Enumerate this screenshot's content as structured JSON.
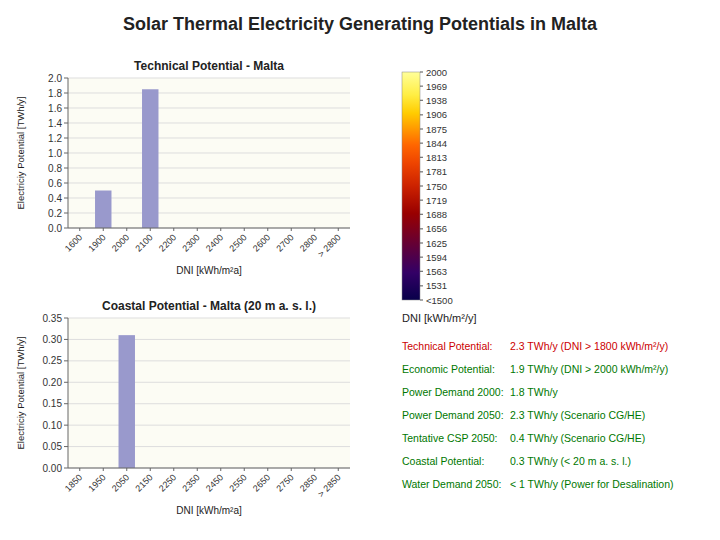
{
  "title": "Solar Thermal Electricity Generating Potentials in Malta",
  "chart_data": [
    {
      "type": "bar",
      "title": "Technical Potential - Malta",
      "categories": [
        "1600",
        "1900",
        "2000",
        "2100",
        "2200",
        "2300",
        "2400",
        "2500",
        "2600",
        "2700",
        "2800",
        "> 2800"
      ],
      "values": [
        0,
        0.5,
        0,
        1.85,
        0,
        0,
        0,
        0,
        0,
        0,
        0,
        0
      ],
      "color": "#9999cc",
      "xlabel": "DNI [kWh/m²a]",
      "ylabel": "Electriciy Potential [TWh/y]",
      "ylim": [
        0,
        2.0
      ],
      "yticks": [
        {
          "value": 0.0,
          "label": "0.0"
        },
        0.2,
        0.4,
        0.6,
        0.8,
        {
          "value": 1.0,
          "label": "1.0"
        },
        1.2,
        1.4,
        1.6,
        1.8,
        {
          "value": 2.0,
          "label": "2.0"
        }
      ],
      "grid": true
    },
    {
      "type": "bar",
      "title": "Coastal Potential - Malta (20 m a. s. l.)",
      "categories": [
        "1850",
        "1950",
        "2050",
        "2150",
        "2250",
        "2350",
        "2450",
        "2550",
        "2650",
        "2750",
        "2850",
        "> 2850"
      ],
      "values": [
        0,
        0,
        0.31,
        0,
        0,
        0,
        0,
        0,
        0,
        0,
        0,
        0
      ],
      "color": "#9999cc",
      "xlabel": "DNI [kWh/m²a]",
      "ylabel": "Electriciy Potential [TWh/y]",
      "ylim": [
        0,
        0.35
      ],
      "yticks": [
        {
          "value": 0.0,
          "label": "0.00"
        },
        0.05,
        {
          "value": 0.1,
          "label": "0.10"
        },
        0.15,
        {
          "value": 0.2,
          "label": "0.20"
        },
        0.25,
        {
          "value": 0.3,
          "label": "0.30"
        },
        0.35
      ],
      "grid": true
    },
    {
      "type": "color_scale",
      "label": "DNI [kWh/m²/y]",
      "range": [
        1500,
        2000
      ],
      "ticks": [
        {
          "value": 1500,
          "label": "<1500"
        },
        1531,
        1563,
        1594,
        1625,
        1656,
        1688,
        1719,
        1750,
        1781,
        1813,
        1844,
        1875,
        1906,
        1938,
        1969,
        2000
      ]
    },
    {
      "type": "table",
      "rows": [
        {
          "label": "Technical Potential:",
          "value": "2.3 TWh/y (DNI > 1800 kWh/m²/y)",
          "color": "#cc0000"
        },
        {
          "label": "Economic Potential:",
          "value": "1.9 TWh/y (DNI > 2000 kWh/m²/y)",
          "color": "#007700"
        },
        {
          "label": "Power Demand 2000:",
          "value": "1.8 TWh/y",
          "color": "#007700"
        },
        {
          "label": "Power Demand 2050:",
          "value": "2.3 TWh/y (Scenario CG/HE)",
          "color": "#007700"
        },
        {
          "label": "Tentative CSP 2050:",
          "value": "0.4 TWh/y (Scenario CG/HE)",
          "color": "#007700"
        },
        {
          "label": "Coastal Potential:",
          "value": "0.3 TWh/y (< 20 m a. s. l.)",
          "color": "#007700"
        },
        {
          "label": "Water Demand 2050:",
          "value": "< 1 TWh/y (Power for Desalination)",
          "color": "#007700"
        }
      ]
    }
  ]
}
